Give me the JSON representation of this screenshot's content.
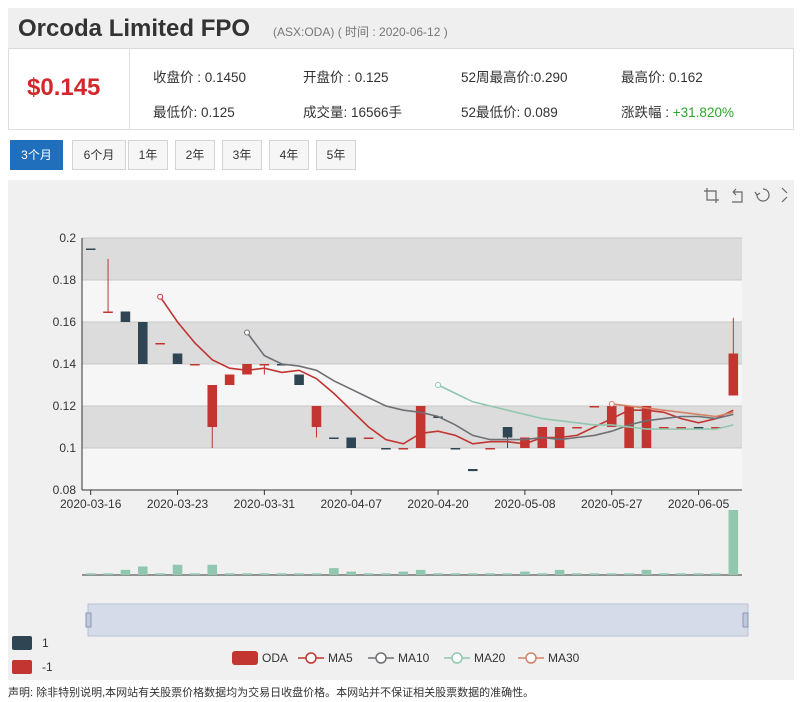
{
  "header": {
    "name": "Orcoda Limited FPO",
    "code": "(ASX:ODA)",
    "time_label": "( 时间 : 2020-06-12 )"
  },
  "quote": {
    "price": "$0.145",
    "close": "收盘价 : 0.1450",
    "open": "开盘价 :  0.125",
    "high52": "52周最高价:0.290",
    "high": "最高价: 0.162",
    "low": "最低价: 0.125",
    "volume": "成交量: 16566手",
    "low52": "52最低价: 0.089",
    "change_label": "涨跌幅 :",
    "change_value": "+31.820%"
  },
  "tabs": [
    "3个月",
    "6个月",
    "1年",
    "2年",
    "3年",
    "4年",
    "5年"
  ],
  "active_tab": 0,
  "toolbar": {
    "icons": [
      "crop-icon",
      "undo-icon",
      "restore-icon",
      "expand-icon"
    ]
  },
  "legend_side": [
    {
      "label": "1",
      "color": "#2f4554"
    },
    {
      "label": "-1",
      "color": "#c23531"
    }
  ],
  "footer": "声明: 除非特别说明,本网站有关股票价格数据均为交易日收盘价格。本网站并不保证相关股票数据的准确性。",
  "colors": {
    "up": "#c23531",
    "down": "#2f4554",
    "ma5": "#c23531",
    "ma10": "#6e7074",
    "ma20": "#91c7ae",
    "ma30": "#d48265",
    "volume": "#91c7ae"
  },
  "chart_data": {
    "type": "candlestick",
    "ylim": [
      0.08,
      0.2
    ],
    "yticks": [
      "0.08",
      "0.1",
      "0.12",
      "0.14",
      "0.16",
      "0.18",
      "0.2"
    ],
    "xtick_labels": [
      "2020-03-16",
      "2020-03-23",
      "2020-03-31",
      "2020-04-07",
      "2020-04-20",
      "2020-05-08",
      "2020-05-27",
      "2020-06-05"
    ],
    "xtick_index": [
      0,
      5,
      10,
      15,
      20,
      25,
      30,
      35
    ],
    "candles": [
      {
        "o": 0.195,
        "c": 0.195,
        "l": 0.195,
        "h": 0.195,
        "d": 1
      },
      {
        "o": 0.165,
        "c": 0.165,
        "l": 0.165,
        "h": 0.19,
        "d": -1
      },
      {
        "o": 0.165,
        "c": 0.16,
        "l": 0.16,
        "h": 0.165,
        "d": 1
      },
      {
        "o": 0.16,
        "c": 0.14,
        "l": 0.14,
        "h": 0.16,
        "d": 1
      },
      {
        "o": 0.15,
        "c": 0.15,
        "l": 0.15,
        "h": 0.15,
        "d": -1
      },
      {
        "o": 0.145,
        "c": 0.14,
        "l": 0.14,
        "h": 0.145,
        "d": 1
      },
      {
        "o": 0.14,
        "c": 0.14,
        "l": 0.14,
        "h": 0.14,
        "d": -1
      },
      {
        "o": 0.11,
        "c": 0.13,
        "l": 0.1,
        "h": 0.13,
        "d": -1
      },
      {
        "o": 0.13,
        "c": 0.135,
        "l": 0.13,
        "h": 0.135,
        "d": -1
      },
      {
        "o": 0.135,
        "c": 0.14,
        "l": 0.135,
        "h": 0.14,
        "d": -1
      },
      {
        "o": 0.14,
        "c": 0.14,
        "l": 0.135,
        "h": 0.14,
        "d": -1
      },
      {
        "o": 0.14,
        "c": 0.14,
        "l": 0.14,
        "h": 0.14,
        "d": 1
      },
      {
        "o": 0.135,
        "c": 0.13,
        "l": 0.13,
        "h": 0.135,
        "d": 1
      },
      {
        "o": 0.11,
        "c": 0.12,
        "l": 0.105,
        "h": 0.12,
        "d": -1
      },
      {
        "o": 0.105,
        "c": 0.105,
        "l": 0.105,
        "h": 0.105,
        "d": 1
      },
      {
        "o": 0.105,
        "c": 0.1,
        "l": 0.1,
        "h": 0.105,
        "d": 1
      },
      {
        "o": 0.105,
        "c": 0.105,
        "l": 0.105,
        "h": 0.105,
        "d": -1
      },
      {
        "o": 0.1,
        "c": 0.1,
        "l": 0.1,
        "h": 0.1,
        "d": 1
      },
      {
        "o": 0.1,
        "c": 0.1,
        "l": 0.1,
        "h": 0.1,
        "d": -1
      },
      {
        "o": 0.1,
        "c": 0.12,
        "l": 0.1,
        "h": 0.12,
        "d": -1
      },
      {
        "o": 0.115,
        "c": 0.115,
        "l": 0.115,
        "h": 0.115,
        "d": 1
      },
      {
        "o": 0.1,
        "c": 0.1,
        "l": 0.1,
        "h": 0.1,
        "d": 1
      },
      {
        "o": 0.09,
        "c": 0.089,
        "l": 0.089,
        "h": 0.09,
        "d": 1
      },
      {
        "o": 0.1,
        "c": 0.1,
        "l": 0.1,
        "h": 0.1,
        "d": -1
      },
      {
        "o": 0.11,
        "c": 0.105,
        "l": 0.1,
        "h": 0.11,
        "d": 1
      },
      {
        "o": 0.1,
        "c": 0.105,
        "l": 0.1,
        "h": 0.105,
        "d": -1
      },
      {
        "o": 0.1,
        "c": 0.11,
        "l": 0.1,
        "h": 0.11,
        "d": -1
      },
      {
        "o": 0.1,
        "c": 0.11,
        "l": 0.1,
        "h": 0.11,
        "d": -1
      },
      {
        "o": 0.11,
        "c": 0.11,
        "l": 0.11,
        "h": 0.11,
        "d": -1
      },
      {
        "o": 0.12,
        "c": 0.12,
        "l": 0.12,
        "h": 0.12,
        "d": -1
      },
      {
        "o": 0.11,
        "c": 0.12,
        "l": 0.11,
        "h": 0.12,
        "d": -1
      },
      {
        "o": 0.1,
        "c": 0.12,
        "l": 0.1,
        "h": 0.12,
        "d": -1
      },
      {
        "o": 0.1,
        "c": 0.12,
        "l": 0.1,
        "h": 0.12,
        "d": -1
      },
      {
        "o": 0.11,
        "c": 0.11,
        "l": 0.11,
        "h": 0.11,
        "d": -1
      },
      {
        "o": 0.11,
        "c": 0.11,
        "l": 0.11,
        "h": 0.11,
        "d": -1
      },
      {
        "o": 0.11,
        "c": 0.11,
        "l": 0.11,
        "h": 0.11,
        "d": 1
      },
      {
        "o": 0.11,
        "c": 0.11,
        "l": 0.11,
        "h": 0.11,
        "d": -1
      },
      {
        "o": 0.125,
        "c": 0.145,
        "l": 0.125,
        "h": 0.162,
        "d": -1
      }
    ],
    "series": [
      {
        "name": "MA5",
        "values": [
          null,
          null,
          null,
          null,
          0.172,
          0.16,
          0.15,
          0.142,
          0.138,
          0.137,
          0.138,
          0.136,
          0.137,
          0.133,
          0.126,
          0.118,
          0.11,
          0.104,
          0.102,
          0.107,
          0.108,
          0.106,
          0.102,
          0.103,
          0.103,
          0.102,
          0.105,
          0.105,
          0.106,
          0.11,
          0.114,
          0.118,
          0.118,
          0.117,
          0.114,
          0.112,
          0.114,
          0.118
        ]
      },
      {
        "name": "MA10",
        "values": [
          null,
          null,
          null,
          null,
          null,
          null,
          null,
          null,
          null,
          0.155,
          0.144,
          0.14,
          0.139,
          0.137,
          0.132,
          0.128,
          0.124,
          0.12,
          0.118,
          0.117,
          0.115,
          0.111,
          0.106,
          0.104,
          0.104,
          0.104,
          0.105,
          0.104,
          0.105,
          0.106,
          0.108,
          0.111,
          0.113,
          0.114,
          0.115,
          0.115,
          0.114,
          0.116
        ]
      },
      {
        "name": "MA20",
        "values": [
          null,
          null,
          null,
          null,
          null,
          null,
          null,
          null,
          null,
          null,
          null,
          null,
          null,
          null,
          null,
          null,
          null,
          null,
          null,
          null,
          0.13,
          0.126,
          0.122,
          0.12,
          0.118,
          0.116,
          0.114,
          0.113,
          0.112,
          0.111,
          0.111,
          0.11,
          0.109,
          0.109,
          0.109,
          0.109,
          0.109,
          0.111
        ]
      },
      {
        "name": "MA30",
        "values": [
          null,
          null,
          null,
          null,
          null,
          null,
          null,
          null,
          null,
          null,
          null,
          null,
          null,
          null,
          null,
          null,
          null,
          null,
          null,
          null,
          null,
          null,
          null,
          null,
          null,
          null,
          null,
          null,
          null,
          null,
          0.121,
          0.12,
          0.119,
          0.118,
          0.117,
          0.116,
          0.115,
          0.117
        ]
      }
    ],
    "volume_series": [
      1,
      1,
      3,
      5,
      1,
      6,
      1,
      6,
      1,
      1,
      1,
      1,
      1,
      1,
      4,
      2,
      1,
      1,
      2,
      3,
      1,
      1,
      1,
      1,
      1,
      2,
      1,
      3,
      1,
      1,
      1,
      1,
      3,
      1,
      1,
      1,
      1,
      38
    ],
    "legend": [
      "ODA",
      "MA5",
      "MA10",
      "MA20",
      "MA30"
    ],
    "y_gridlines": true
  }
}
